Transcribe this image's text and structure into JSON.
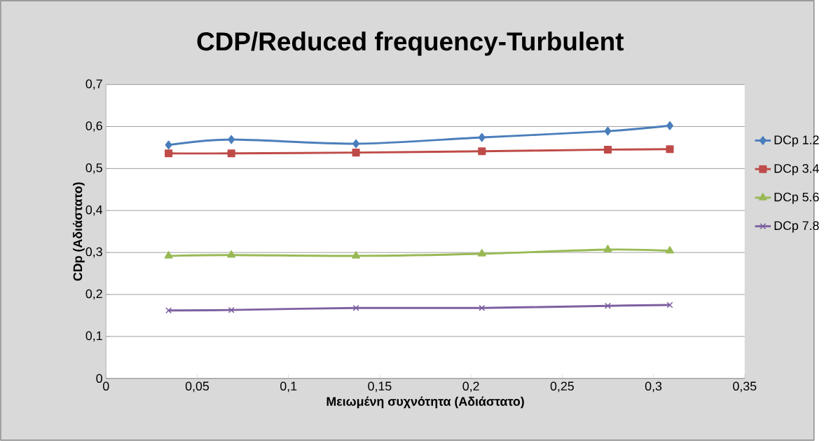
{
  "chart_data": {
    "type": "line",
    "title": "CDP/Reduced frequency-Turbulent",
    "xlabel": "Μειωμένη συχνότητα (Αδιάστατο)",
    "ylabel": "CDp (Αδιάστατο)",
    "x": [
      0.0343,
      0.0687,
      0.137,
      0.206,
      0.275,
      0.309
    ],
    "series": [
      {
        "name": "DCp 1.2",
        "color": "#4a7ebb",
        "marker": "diamond",
        "values": [
          0.556,
          0.569,
          0.559,
          0.574,
          0.589,
          0.602
        ]
      },
      {
        "name": "DCp 3.4",
        "color": "#be4b48",
        "marker": "square",
        "values": [
          0.536,
          0.536,
          0.538,
          0.541,
          0.545,
          0.546
        ]
      },
      {
        "name": "DCp 5.6",
        "color": "#98b954",
        "marker": "triangle",
        "values": [
          0.292,
          0.294,
          0.292,
          0.297,
          0.307,
          0.304
        ]
      },
      {
        "name": "DCp 7.8",
        "color": "#7d60a0",
        "marker": "cross",
        "values": [
          0.162,
          0.163,
          0.168,
          0.168,
          0.173,
          0.175
        ]
      }
    ],
    "xlim": [
      0,
      0.35
    ],
    "xticks": [
      0,
      {
        "value": 0.05,
        "label": "0,05"
      },
      {
        "value": 0.1,
        "label": "0,1"
      },
      {
        "value": 0.15,
        "label": "0,15"
      },
      {
        "value": 0.2,
        "label": "0,2"
      },
      {
        "value": 0.25,
        "label": "0,25"
      },
      {
        "value": 0.3,
        "label": "0,3"
      },
      {
        "value": 0.35,
        "label": "0,35"
      }
    ],
    "ylim": [
      0,
      0.7
    ],
    "yticks": [
      0,
      {
        "value": 0.1,
        "label": "0,1"
      },
      {
        "value": 0.2,
        "label": "0,2"
      },
      {
        "value": 0.3,
        "label": "0,3"
      },
      {
        "value": 0.4,
        "label": "0,4"
      },
      {
        "value": 0.5,
        "label": "0,5"
      },
      {
        "value": 0.6,
        "label": "0,6"
      },
      {
        "value": 0.7,
        "label": "0,7"
      }
    ],
    "grid": "y",
    "legend": "right",
    "line_style": "solid"
  }
}
